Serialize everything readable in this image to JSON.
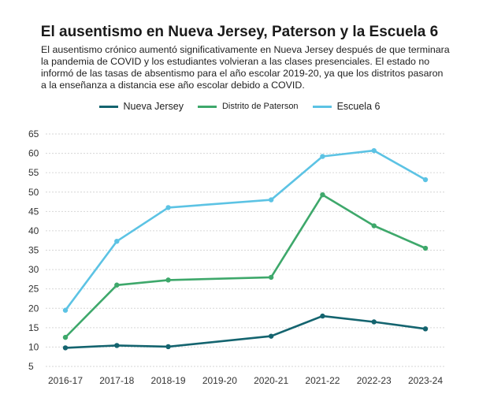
{
  "title": "El ausentismo en Nueva Jersey, Paterson y la Escuela 6",
  "subtitle": "El ausentismo crónico aumentó significativamente en Nueva Jersey  después de que terminara la pandemia de COVID y los estudiantes volvieran a las clases presenciales. El estado no informó de las tasas de absentismo para el año escolar 2019-20, ya que los distritos pasaron a la enseñanza a distancia ese año escolar debido a COVID.",
  "chart_data": {
    "type": "line",
    "categories": [
      "2016-17",
      "2017-18",
      "2018-19",
      "2019-20",
      "2020-21",
      "2021-22",
      "2022-23",
      "2023-24"
    ],
    "yticks": [
      "65",
      "60",
      "55",
      "50",
      "45",
      "40",
      "35",
      "30",
      "25",
      "20",
      "15",
      "10",
      "5"
    ],
    "ylim": [
      5,
      65
    ],
    "grid": true,
    "legend_position": "top",
    "series": [
      {
        "name": "Nueva Jersey",
        "color": "#14646f",
        "values": [
          9.8,
          10.4,
          10.1,
          null,
          12.8,
          18.0,
          16.5,
          14.7
        ]
      },
      {
        "name": "Distrito de Paterson",
        "color": "#3ea86b",
        "values": [
          12.5,
          26.0,
          27.3,
          null,
          28.0,
          49.3,
          41.3,
          35.5
        ]
      },
      {
        "name": "Escuela 6",
        "color": "#5cc3e4",
        "values": [
          19.5,
          37.3,
          46.0,
          null,
          48.0,
          59.2,
          60.7,
          53.2
        ]
      }
    ]
  }
}
